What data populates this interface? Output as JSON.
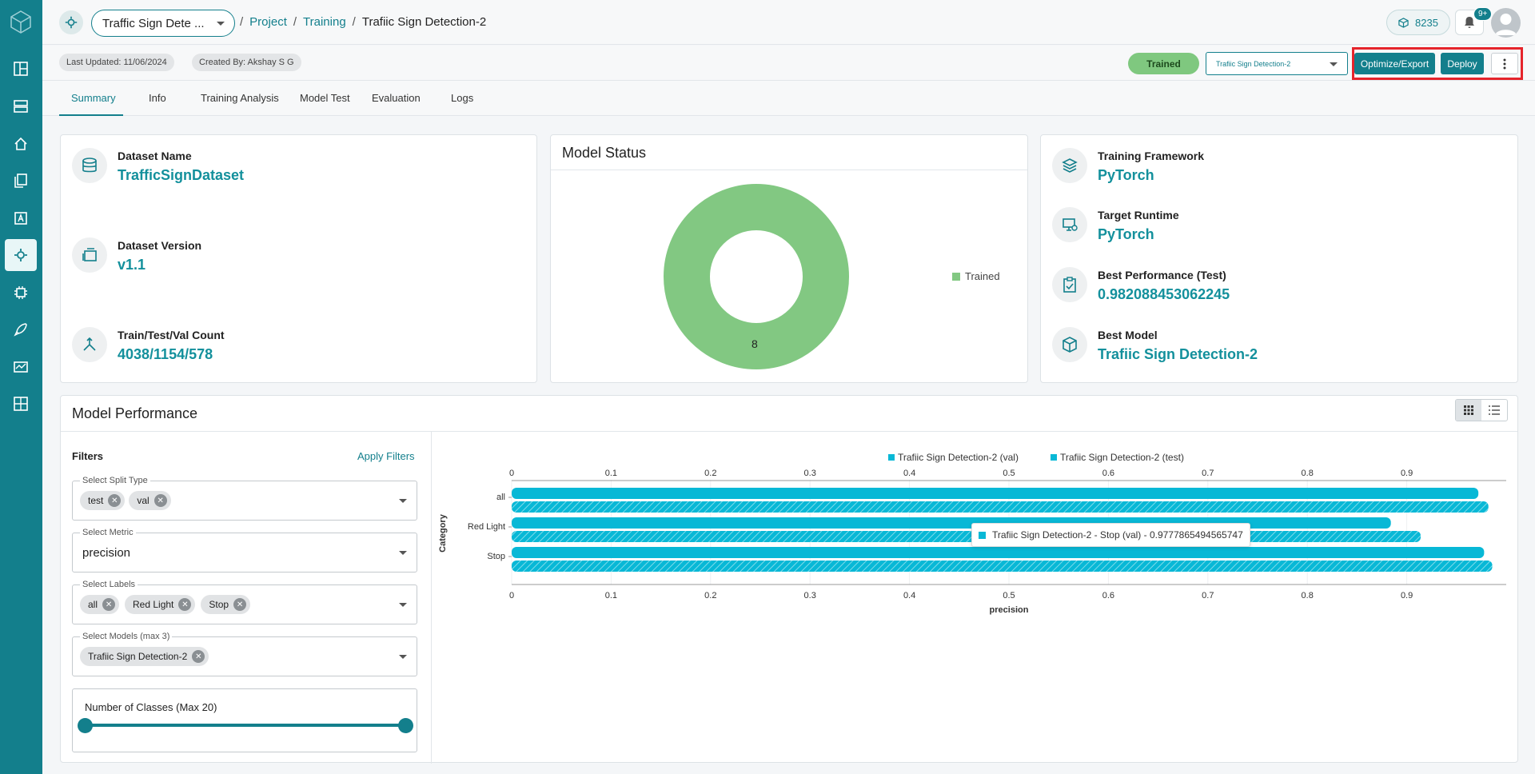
{
  "header": {
    "project_select": "Traffic Sign Dete ...",
    "breadcrumb": [
      "Project",
      "Training",
      "Trafiic Sign Detection-2"
    ],
    "credits": "8235",
    "notification_badge": "9+"
  },
  "subbar": {
    "last_updated": "Last Updated: 11/06/2024",
    "created_by": "Created By: Akshay S G",
    "status": "Trained",
    "model_select": "Trafiic Sign Detection-2",
    "optimize_label": "Optimize/Export",
    "deploy_label": "Deploy"
  },
  "tabs": [
    "Summary",
    "Info",
    "Training Analysis",
    "Model Test",
    "Evaluation",
    "Logs"
  ],
  "dataset_card": {
    "dataset_name_label": "Dataset Name",
    "dataset_name": "TrafficSignDataset",
    "dataset_version_label": "Dataset Version",
    "dataset_version": "v1.1",
    "count_label": "Train/Test/Val Count",
    "count": "4038/1154/578"
  },
  "model_status": {
    "title": "Model Status",
    "legend": "Trained",
    "value": "8",
    "color": "#82c882"
  },
  "training_card": {
    "framework_label": "Training Framework",
    "framework": "PyTorch",
    "runtime_label": "Target Runtime",
    "runtime": "PyTorch",
    "best_perf_label": "Best Performance (Test)",
    "best_perf": "0.982088453062245",
    "best_model_label": "Best Model",
    "best_model": "Trafiic Sign Detection-2"
  },
  "performance": {
    "title": "Model Performance",
    "filters_label": "Filters",
    "apply_label": "Apply Filters",
    "split_label": "Select Split Type",
    "split_values": [
      "test",
      "val"
    ],
    "metric_label": "Select Metric",
    "metric_value": "precision",
    "labels_label": "Select Labels",
    "labels_values": [
      "all",
      "Red Light",
      "Stop"
    ],
    "models_label": "Select Models (max 3)",
    "models_values": [
      "Trafiic Sign Detection-2"
    ],
    "classes_label": "Number of Classes (Max 20)",
    "tooltip": "Trafiic Sign Detection-2 - Stop (val) - 0.9777865494565747"
  },
  "chart_data": {
    "type": "bar",
    "orientation": "horizontal",
    "categories": [
      "all",
      "Red Light",
      "Stop"
    ],
    "series": [
      {
        "name": "Trafiic Sign Detection-2 (val)",
        "values": [
          0.972,
          0.884,
          0.9777865494565747
        ],
        "pattern": "solid"
      },
      {
        "name": "Trafiic Sign Detection-2 (test)",
        "values": [
          0.982088453062245,
          0.914,
          0.986
        ],
        "pattern": "hatched"
      }
    ],
    "xlabel": "precision",
    "ylabel": "Category",
    "xticks": [
      "0",
      "0.1",
      "0.2",
      "0.3",
      "0.4",
      "0.5",
      "0.6",
      "0.7",
      "0.8",
      "0.9"
    ],
    "xlim": [
      0,
      1
    ],
    "color": "#08b8d6",
    "legend_position": "top"
  }
}
